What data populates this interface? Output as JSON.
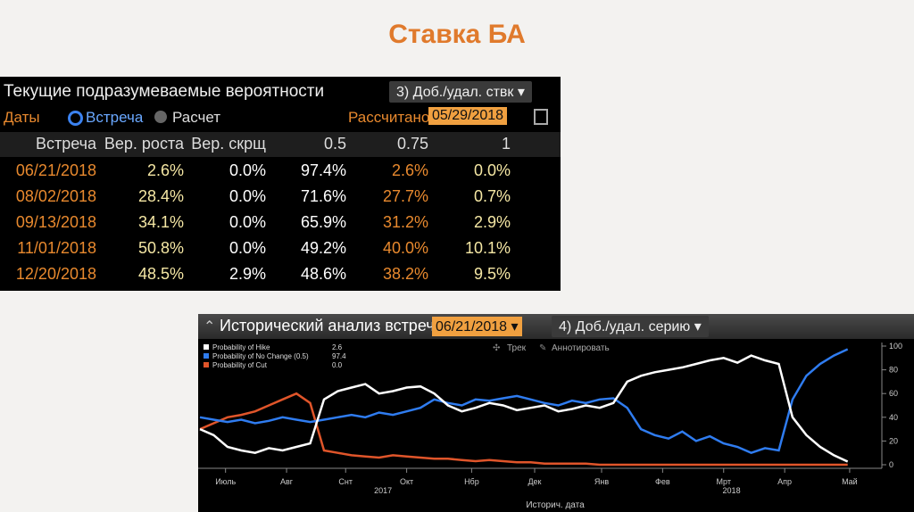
{
  "slide_title": "Ставка БА",
  "rates_panel": {
    "title": "Текущие подразумеваемые вероятности",
    "menu_button": "3) Доб./удал. ствк",
    "dates_label": "Даты",
    "options": [
      "Встреча",
      "Расчет"
    ],
    "calculated_label": "Рассчитано",
    "calculated_date": "05/29/2018",
    "table": {
      "header": [
        "Встреча",
        "Вер. роста",
        "Вер. скрщ",
        "0.5",
        "0.75",
        "1"
      ],
      "rows": [
        [
          "06/21/2018",
          "2.6%",
          "0.0%",
          "97.4%",
          "2.6%",
          "0.0%"
        ],
        [
          "08/02/2018",
          "28.4%",
          "0.0%",
          "71.6%",
          "27.7%",
          "0.7%"
        ],
        [
          "09/13/2018",
          "34.1%",
          "0.0%",
          "65.9%",
          "31.2%",
          "2.9%"
        ],
        [
          "11/01/2018",
          "50.8%",
          "0.0%",
          "49.2%",
          "40.0%",
          "10.1%"
        ],
        [
          "12/20/2018",
          "48.5%",
          "2.9%",
          "48.6%",
          "38.2%",
          "9.5%"
        ]
      ]
    }
  },
  "history_panel": {
    "title": "Исторический анализ встречи",
    "meeting_date": "06/21/2018",
    "series_button": "4) Доб./удал. серию",
    "tools": [
      "Трек",
      "Аннотировать"
    ],
    "x_axis_label": "Историч. дата"
  },
  "chart_data": {
    "type": "line",
    "x": [
      0,
      7,
      14,
      21,
      28,
      35,
      42,
      49,
      56,
      63,
      70,
      77,
      84,
      91,
      98,
      105,
      112,
      119,
      126,
      133,
      140,
      147,
      154,
      161,
      168,
      175,
      182,
      189,
      196,
      203,
      210,
      217,
      224,
      231,
      238,
      245,
      252,
      259,
      266,
      273,
      280,
      287,
      294,
      301,
      308,
      315,
      322,
      329
    ],
    "series": [
      {
        "name": "Probability of Hike",
        "legend_value": "2.6",
        "color": "#ffffff",
        "values": [
          30,
          25,
          15,
          12,
          10,
          14,
          12,
          15,
          18,
          55,
          62,
          65,
          68,
          60,
          62,
          65,
          66,
          60,
          50,
          45,
          48,
          52,
          50,
          46,
          48,
          50,
          45,
          47,
          50,
          48,
          52,
          70,
          75,
          78,
          80,
          82,
          85,
          88,
          90,
          86,
          92,
          88,
          85,
          40,
          25,
          15,
          8,
          2.6
        ]
      },
      {
        "name": "Probability of No Change (0.5)",
        "legend_value": "97.4",
        "color": "#2f7cf0",
        "values": [
          40,
          38,
          36,
          38,
          35,
          37,
          40,
          38,
          36,
          38,
          40,
          42,
          40,
          44,
          42,
          45,
          48,
          55,
          52,
          50,
          55,
          54,
          56,
          58,
          55,
          52,
          50,
          54,
          52,
          55,
          56,
          48,
          30,
          25,
          22,
          28,
          20,
          24,
          18,
          15,
          10,
          14,
          12,
          55,
          75,
          85,
          92,
          97.4
        ]
      },
      {
        "name": "Probability of Cut",
        "legend_value": "0.0",
        "color": "#e0552a",
        "values": [
          30,
          35,
          40,
          42,
          45,
          50,
          55,
          60,
          52,
          12,
          10,
          8,
          7,
          6,
          8,
          7,
          6,
          5,
          5,
          4,
          3,
          4,
          3,
          2,
          2,
          1,
          1,
          1,
          1,
          0,
          0,
          0,
          0,
          0,
          0,
          0,
          0,
          0,
          0,
          0,
          0,
          0,
          0,
          0,
          0,
          0,
          0,
          0
        ]
      }
    ],
    "xlim": [
      0,
      345
    ],
    "xticks": [
      {
        "value": 13,
        "label": "Июль"
      },
      {
        "value": 44,
        "label": "Авг"
      },
      {
        "value": 74,
        "label": "Снт"
      },
      {
        "value": 105,
        "label": "Окт"
      },
      {
        "value": 138,
        "label": "Нбр"
      },
      {
        "value": 170,
        "label": "Дек"
      },
      {
        "value": 204,
        "label": "Янв"
      },
      {
        "value": 235,
        "label": "Фев"
      },
      {
        "value": 266,
        "label": "Мрт"
      },
      {
        "value": 297,
        "label": "Апр"
      },
      {
        "value": 330,
        "label": "Май"
      }
    ],
    "year_labels": [
      {
        "value": 93,
        "label": "2017"
      },
      {
        "value": 270,
        "label": "2018"
      }
    ],
    "ylim": [
      0,
      100
    ],
    "yticks": [
      0,
      20,
      40,
      60,
      80,
      100
    ]
  }
}
